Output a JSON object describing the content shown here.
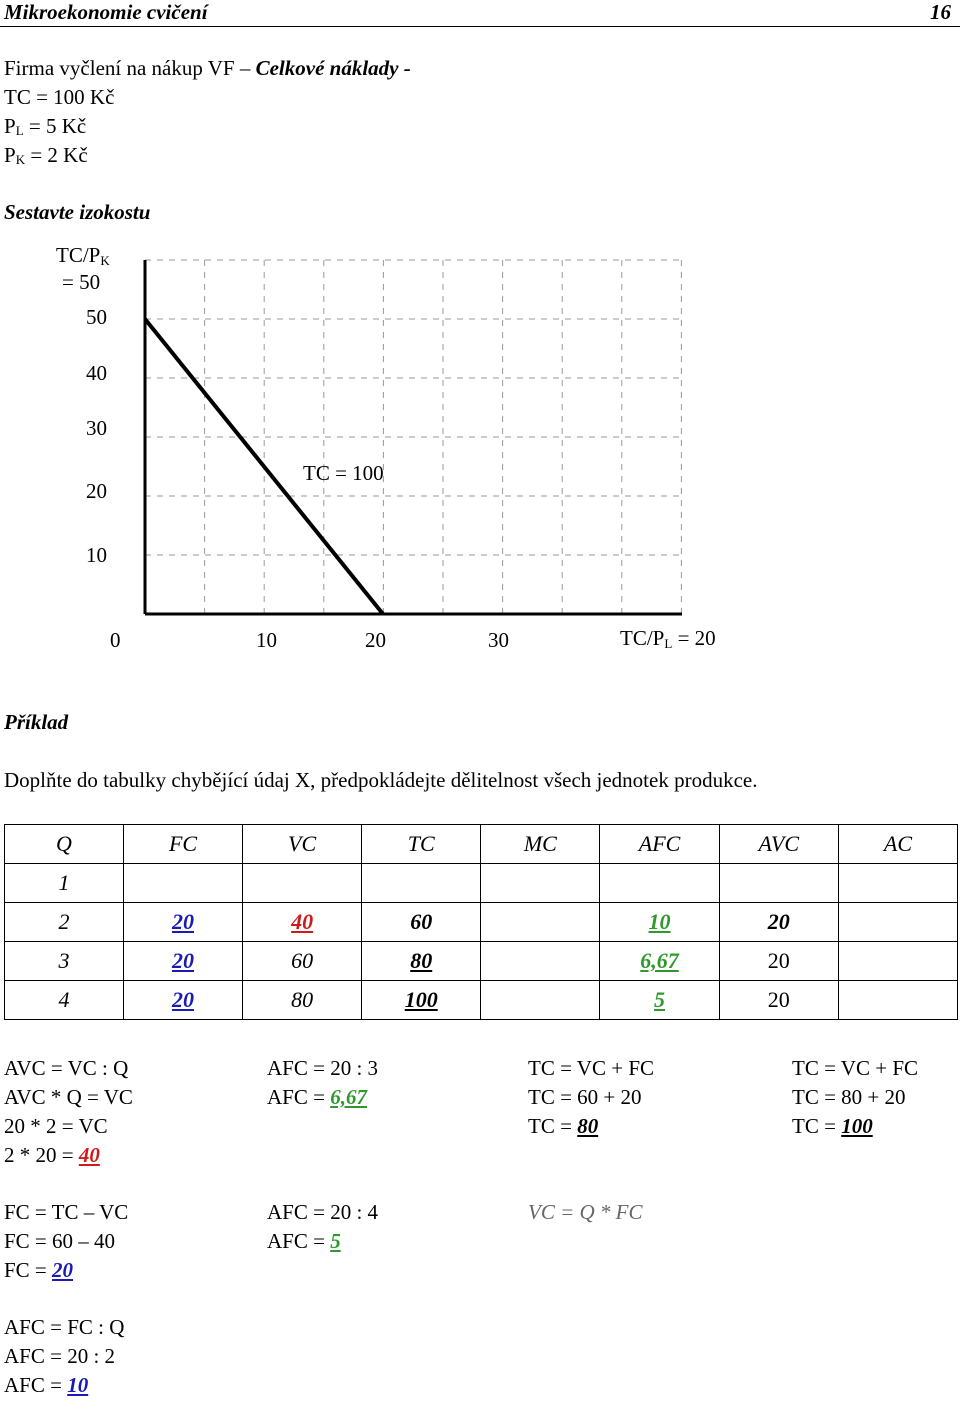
{
  "header": {
    "title": "Mikroekonomie cvičení",
    "page": "16"
  },
  "intro": {
    "line1_plain": "Firma vyčlení na nákup VF – ",
    "line1_italic": "Celkové náklady -",
    "tc": "TC = 100 Kč",
    "pl_p": "P",
    "pl_sub": "L",
    "pl_rest": " = 5 Kč",
    "pk_p": "P",
    "pk_sub": "K",
    "pk_rest": " = 2 Kč"
  },
  "section1": "Sestavte izokostu",
  "chart_data": {
    "type": "line",
    "title": "",
    "y_axis_label_main": "TC/P",
    "y_axis_label_sub": "K",
    "y_axis_label_value": "= 50",
    "x_axis_label_main": "TC/P",
    "x_axis_label_sub": "L",
    "x_axis_label_value": " = 20",
    "y_ticks": [
      "50",
      "40",
      "30",
      "20",
      "10"
    ],
    "x_ticks": [
      "0",
      "10",
      "20",
      "30"
    ],
    "annotation": "TC = 100",
    "series": [
      {
        "points": [
          {
            "x": 0,
            "y": 50
          },
          {
            "x": 20,
            "y": 0
          }
        ]
      }
    ],
    "grid": true,
    "grid_style": "dashed"
  },
  "section2": "Příklad",
  "task": "Doplňte do tabulky chybějící údaj X, předpokládejte dělitelnost všech jednotek produkce.",
  "table": {
    "headers": [
      "Q",
      "FC",
      "VC",
      "TC",
      "MC",
      "AFC",
      "AVC",
      "AC"
    ],
    "rows": [
      [
        "1",
        "",
        "",
        "",
        "",
        "",
        "",
        ""
      ],
      [
        "2",
        "20",
        "40",
        "60",
        "",
        "10",
        "20",
        ""
      ],
      [
        "3",
        "20",
        "60",
        "80",
        "",
        "6,67",
        "20",
        ""
      ],
      [
        "4",
        "20",
        "80",
        "100",
        "",
        "5",
        "20",
        ""
      ]
    ]
  },
  "formulas": {
    "col1": [
      "AVC = VC : Q",
      "AVC * Q = VC",
      "20 * 2 = VC",
      "2 * 20 = ",
      "40"
    ],
    "col2": [
      "AFC = 20 : 3",
      "AFC = ",
      "6,67"
    ],
    "col3": [
      "TC = VC + FC",
      "TC = 60 + 20",
      "TC = ",
      "80"
    ],
    "col4": [
      "TC = VC + FC",
      "TC = 80 + 20",
      "TC = ",
      "100"
    ],
    "fc": [
      "FC = TC – VC",
      "FC = 60 – 40",
      "FC = ",
      "20"
    ],
    "afc4": [
      "AFC = 20 : 4",
      "AFC = ",
      "5"
    ],
    "vc_note": "VC = Q * FC",
    "afc2": [
      "AFC = FC : Q",
      "AFC = 20 : 2",
      "AFC = ",
      "10"
    ]
  },
  "colors": {
    "blue": "#1a1ab4",
    "red": "#d01a1a",
    "green": "#2e9a2e"
  }
}
